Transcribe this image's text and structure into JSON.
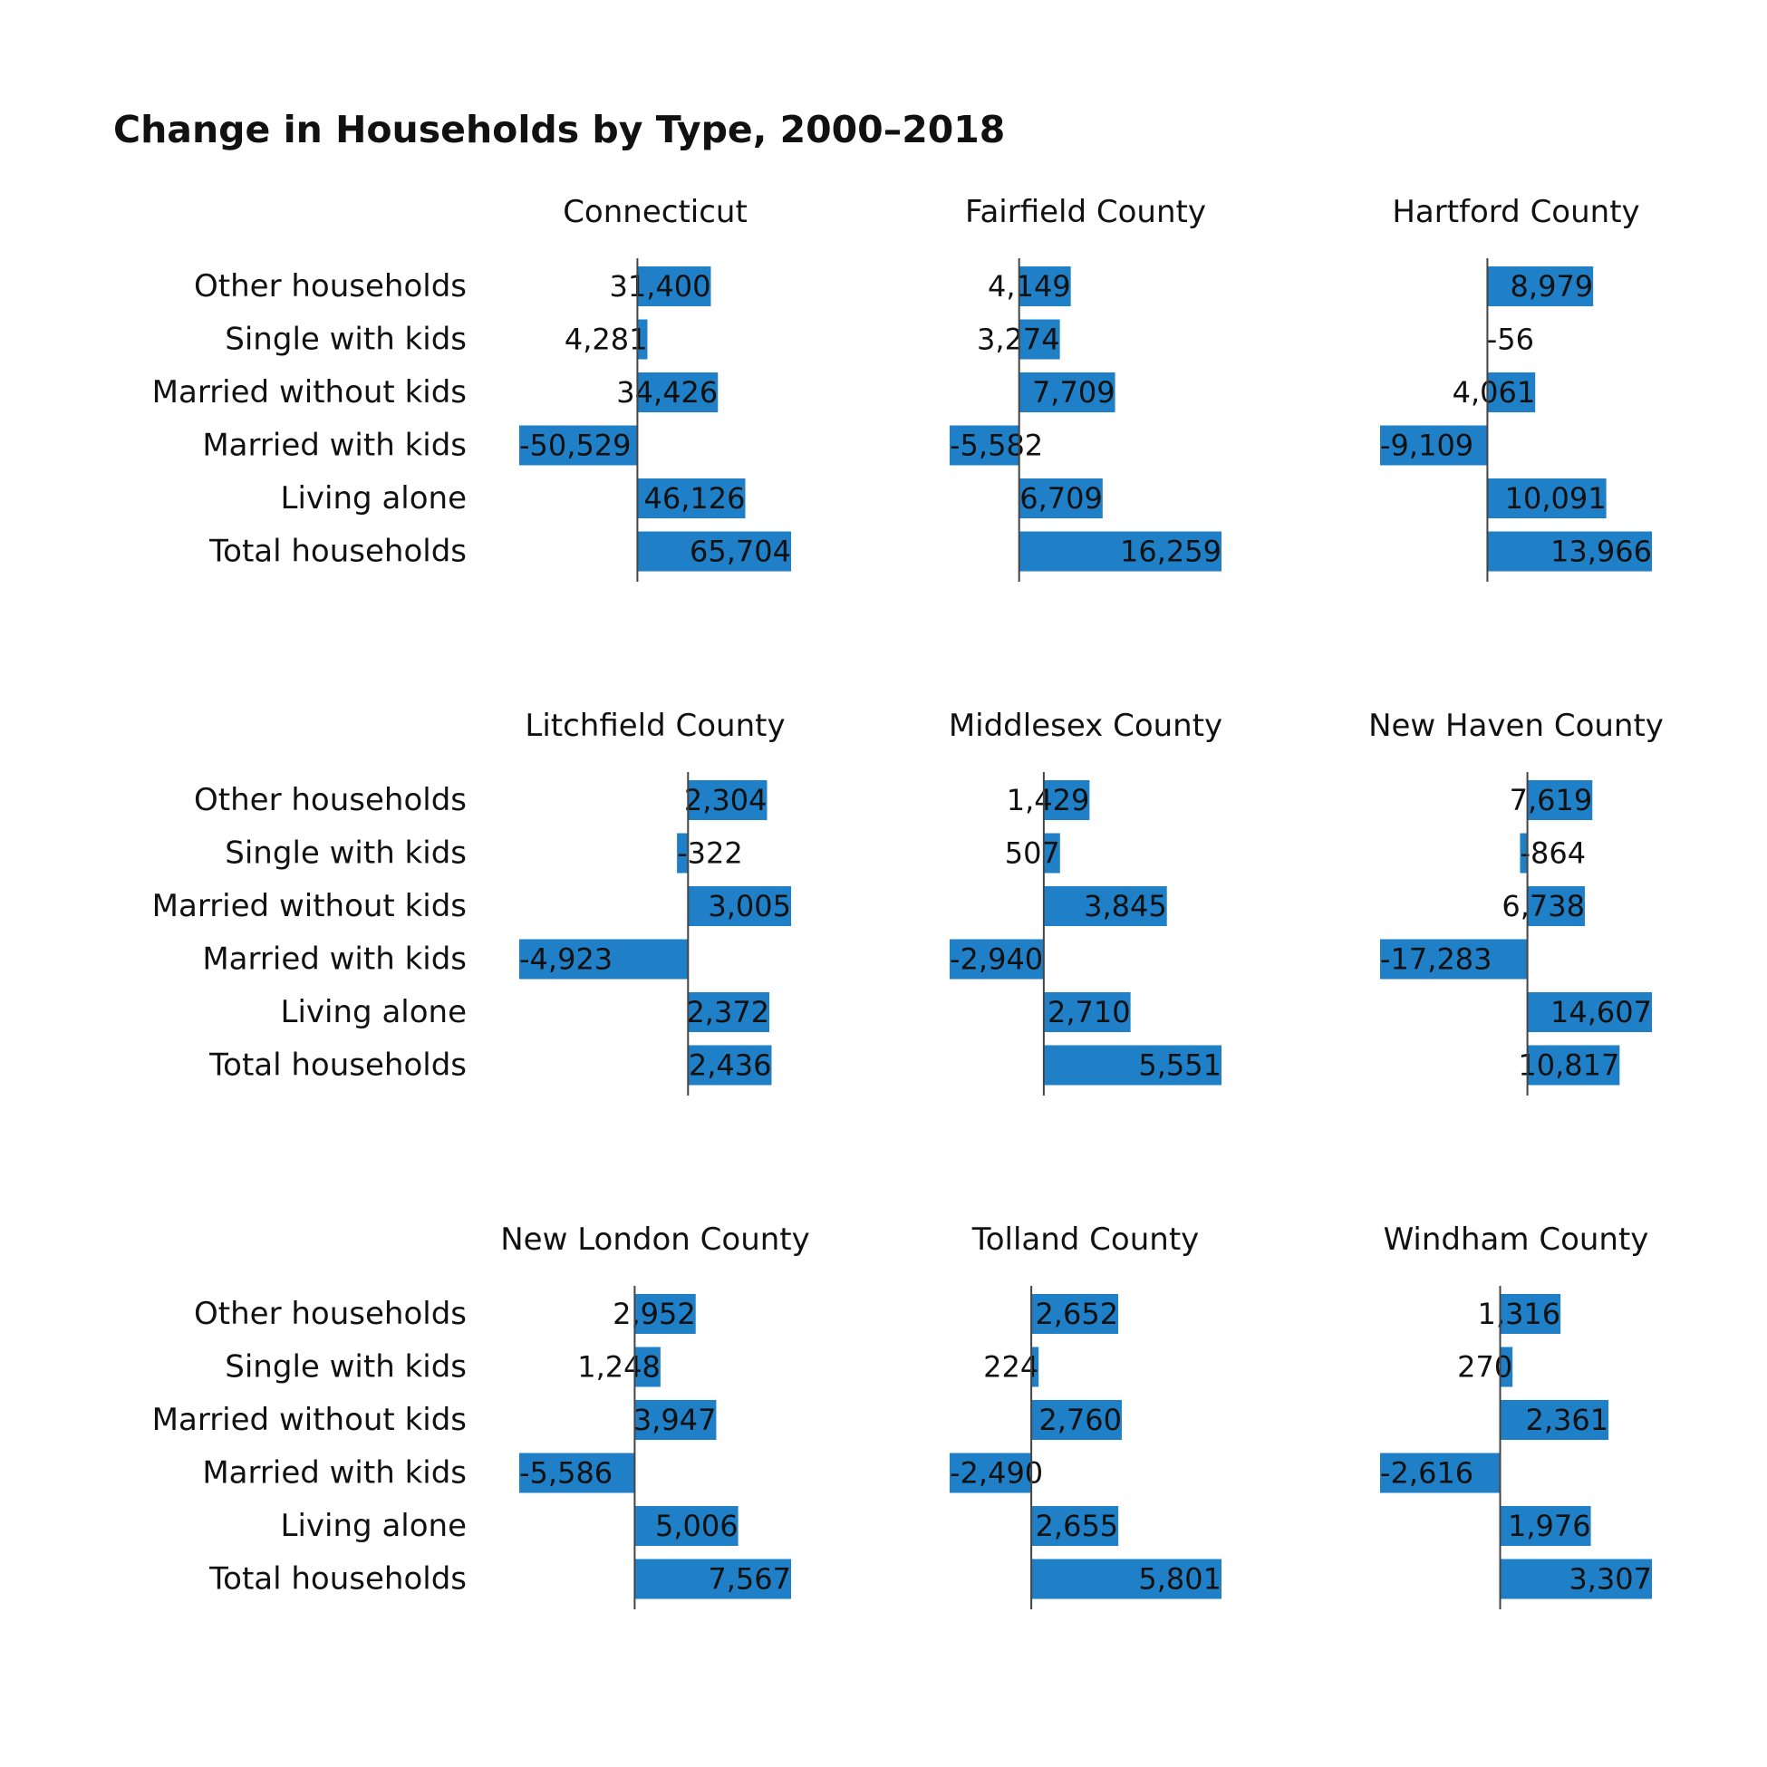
{
  "chart_data": {
    "type": "bar",
    "orientation": "horizontal",
    "title": "Change in Households by Type, 2000–2018",
    "categories": [
      "Other households",
      "Single with kids",
      "Married without kids",
      "Married with kids",
      "Living alone",
      "Total households"
    ],
    "bar_color": "#1f80c8",
    "grid": false,
    "facets": [
      {
        "name": "Connecticut",
        "values": [
          31400,
          4281,
          34426,
          -50529,
          46126,
          65704
        ],
        "labels": [
          "31,400",
          "4,281",
          "34,426",
          "-50,529",
          "46,126",
          "65,704"
        ]
      },
      {
        "name": "Fairfield County",
        "values": [
          4149,
          3274,
          7709,
          -5582,
          6709,
          16259
        ],
        "labels": [
          "4,149",
          "3,274",
          "7,709",
          "-5,582",
          "6,709",
          "16,259"
        ]
      },
      {
        "name": "Hartford County",
        "values": [
          8979,
          -56,
          4061,
          -9109,
          10091,
          13966
        ],
        "labels": [
          "8,979",
          "-56",
          "4,061",
          "-9,109",
          "10,091",
          "13,966"
        ]
      },
      {
        "name": "Litchfield County",
        "values": [
          2304,
          -322,
          3005,
          -4923,
          2372,
          2436
        ],
        "labels": [
          "2,304",
          "-322",
          "3,005",
          "-4,923",
          "2,372",
          "2,436"
        ]
      },
      {
        "name": "Middlesex County",
        "values": [
          1429,
          507,
          3845,
          -2940,
          2710,
          5551
        ],
        "labels": [
          "1,429",
          "507",
          "3,845",
          "-2,940",
          "2,710",
          "5,551"
        ]
      },
      {
        "name": "New Haven County",
        "values": [
          7619,
          -864,
          6738,
          -17283,
          14607,
          10817
        ],
        "labels": [
          "7,619",
          "-864",
          "6,738",
          "-17,283",
          "14,607",
          "10,817"
        ]
      },
      {
        "name": "New London County",
        "values": [
          2952,
          1248,
          3947,
          -5586,
          5006,
          7567
        ],
        "labels": [
          "2,952",
          "1,248",
          "3,947",
          "-5,586",
          "5,006",
          "7,567"
        ]
      },
      {
        "name": "Tolland County",
        "values": [
          2652,
          224,
          2760,
          -2490,
          2655,
          5801
        ],
        "labels": [
          "2,652",
          "224",
          "2,760",
          "-2,490",
          "2,655",
          "5,801"
        ]
      },
      {
        "name": "Windham County",
        "values": [
          1316,
          270,
          2361,
          -2616,
          1976,
          3307
        ],
        "labels": [
          "1,316",
          "270",
          "2,361",
          "-2,616",
          "1,976",
          "3,307"
        ]
      }
    ]
  }
}
